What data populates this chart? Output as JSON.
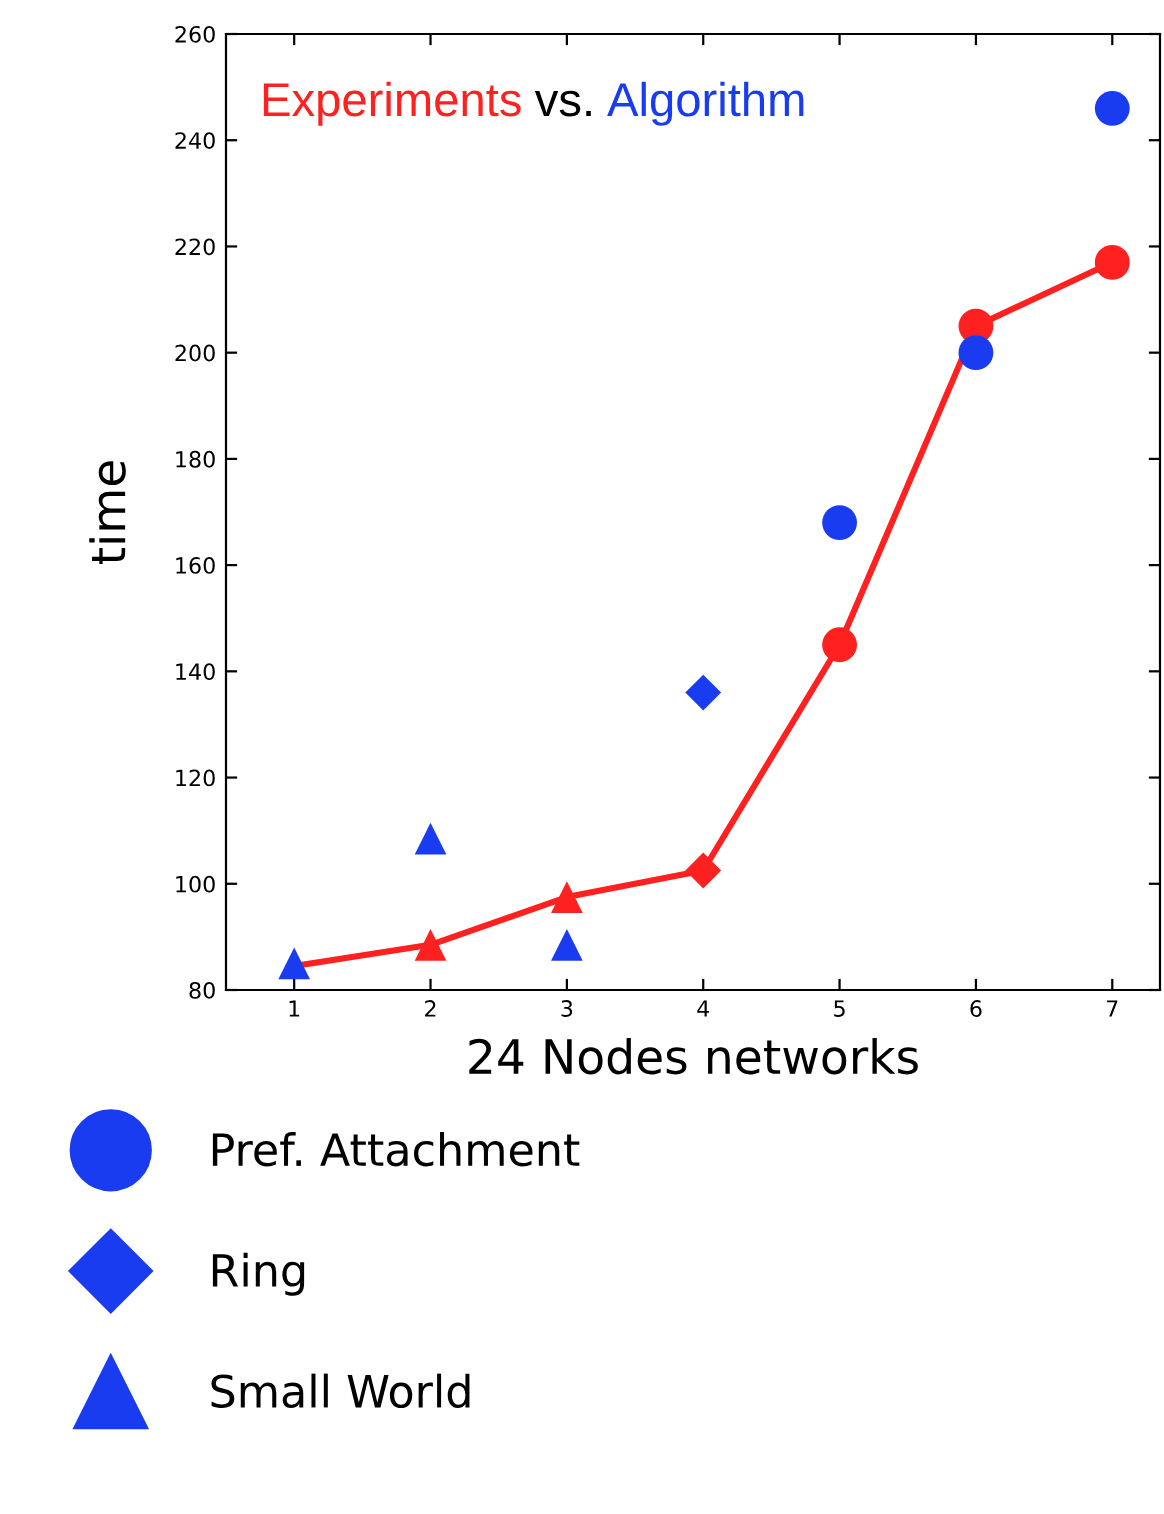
{
  "chart_data": {
    "type": "scatter",
    "title": "Experiments vs. Algorithm",
    "xlabel": "24 Nodes networks",
    "ylabel": "time",
    "xlim": [
      0.5,
      7.35
    ],
    "xticks": [
      1,
      2,
      3,
      4,
      5,
      6,
      7
    ],
    "ylim": [
      80,
      260
    ],
    "yticks": [
      80,
      100,
      120,
      140,
      160,
      180,
      200,
      220,
      240,
      260
    ],
    "grid": false,
    "legend": "bottom",
    "series": [
      {
        "type": "line",
        "color": "#ff2020",
        "marker": "none",
        "line_style": "solid",
        "x": [
          1,
          2,
          3,
          4,
          5,
          6,
          7
        ],
        "values": [
          84.5,
          88.5,
          97.5,
          102.5,
          145,
          205,
          217
        ]
      },
      {
        "color": "#ff2020",
        "marker": "triangle",
        "x": [
          2,
          3
        ],
        "values": [
          88.5,
          97.5
        ]
      },
      {
        "color": "#ff2020",
        "marker": "diamond",
        "x": [
          4
        ],
        "values": [
          102.5
        ]
      },
      {
        "color": "#ff2020",
        "marker": "circle",
        "x": [
          5,
          6,
          7
        ],
        "values": [
          145,
          205,
          217
        ]
      },
      {
        "name": "Pref. Attachment",
        "color": "#1a3cf0",
        "marker": "circle",
        "x": [
          5,
          6,
          7
        ],
        "values": [
          168,
          200,
          246
        ]
      },
      {
        "name": "Ring",
        "color": "#1a3cf0",
        "marker": "diamond",
        "x": [
          4
        ],
        "values": [
          136
        ]
      },
      {
        "name": "Small World",
        "color": "#1a3cf0",
        "marker": "triangle",
        "x": [
          1,
          2,
          3
        ],
        "values": [
          85,
          108.5,
          88.5
        ]
      }
    ]
  }
}
